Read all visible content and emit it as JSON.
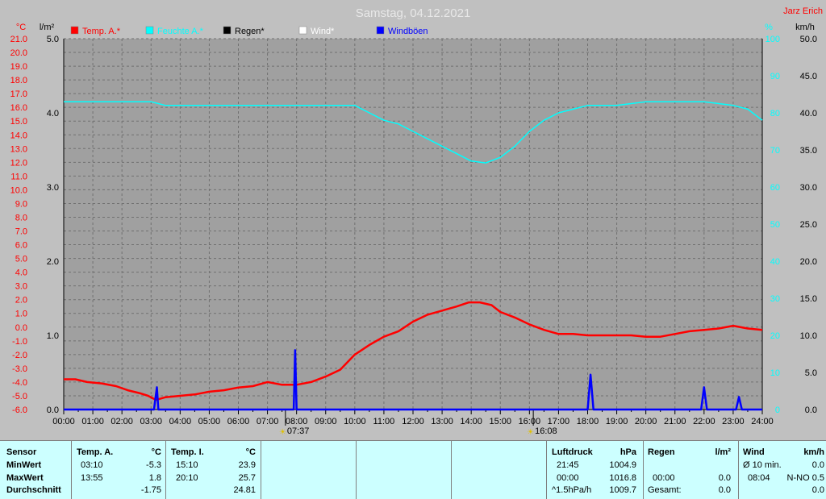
{
  "chart_data": {
    "type": "line",
    "title": "Samstag, 04.12.2021",
    "author": "Jarz Erich",
    "legend": [
      {
        "label": "Temp. A.*",
        "color": "#ff0000"
      },
      {
        "label": "Feuchte A.*",
        "color": "#00ffff"
      },
      {
        "label": "Regen*",
        "color": "#000000"
      },
      {
        "label": "Wind*",
        "color": "#ffffff"
      },
      {
        "label": "Windböen",
        "color": "#0000ff"
      }
    ],
    "axes": {
      "temp_unit": "°C",
      "temp_ticks": [
        "21.0",
        "20.0",
        "19.0",
        "18.0",
        "17.0",
        "16.0",
        "15.0",
        "14.0",
        "13.0",
        "12.0",
        "11.0",
        "10.0",
        "9.0",
        "8.0",
        "7.0",
        "6.0",
        "5.0",
        "4.0",
        "3.0",
        "2.0",
        "1.0",
        "0.0",
        "-1.0",
        "-2.0",
        "-3.0",
        "-4.0",
        "-5.0",
        "-6.0"
      ],
      "temp_range": [
        -6,
        21
      ],
      "rain_unit": "l/m²",
      "rain_ticks": [
        "5.0",
        "4.0",
        "3.0",
        "2.0",
        "1.0",
        "0.0"
      ],
      "rain_range": [
        0,
        5
      ],
      "hum_unit": "%",
      "hum_ticks": [
        "100",
        "90",
        "80",
        "70",
        "60",
        "50",
        "40",
        "30",
        "20",
        "10",
        "0"
      ],
      "hum_range": [
        0,
        100
      ],
      "wind_unit": "km/h",
      "wind_ticks": [
        "50.0",
        "45.0",
        "40.0",
        "35.0",
        "30.0",
        "25.0",
        "20.0",
        "15.0",
        "10.0",
        "5.0",
        "0.0"
      ],
      "wind_range": [
        0,
        50
      ],
      "x_ticks": [
        "00:00",
        "01:00",
        "02:00",
        "03:00",
        "04:00",
        "05:00",
        "06:00",
        "07:00",
        "08:00",
        "09:00",
        "10:00",
        "11:00",
        "12:00",
        "13:00",
        "14:00",
        "15:00",
        "16:00",
        "17:00",
        "18:00",
        "19:00",
        "20:00",
        "21:00",
        "22:00",
        "23:00",
        "24:00"
      ],
      "x_range_hours": [
        0,
        24
      ],
      "grid": true
    },
    "sun_markers": [
      {
        "label": "07:37",
        "hour": 7.617
      },
      {
        "label": "16:08",
        "hour": 16.133
      }
    ],
    "series": [
      {
        "name": "Temp. A.*",
        "color": "#ff0000",
        "axis": "temp",
        "points": [
          [
            0,
            -3.8
          ],
          [
            0.4,
            -3.8
          ],
          [
            0.8,
            -4.0
          ],
          [
            1.3,
            -4.1
          ],
          [
            1.8,
            -4.3
          ],
          [
            2.2,
            -4.6
          ],
          [
            2.6,
            -4.8
          ],
          [
            2.9,
            -5.0
          ],
          [
            3.17,
            -5.3
          ],
          [
            3.5,
            -5.1
          ],
          [
            4.0,
            -5.0
          ],
          [
            4.5,
            -4.9
          ],
          [
            5.0,
            -4.7
          ],
          [
            5.5,
            -4.6
          ],
          [
            6.0,
            -4.4
          ],
          [
            6.5,
            -4.3
          ],
          [
            7.0,
            -4.0
          ],
          [
            7.5,
            -4.2
          ],
          [
            8.0,
            -4.2
          ],
          [
            8.5,
            -4.0
          ],
          [
            9.0,
            -3.6
          ],
          [
            9.5,
            -3.1
          ],
          [
            10.0,
            -2.0
          ],
          [
            10.5,
            -1.3
          ],
          [
            11.0,
            -0.7
          ],
          [
            11.5,
            -0.3
          ],
          [
            12.0,
            0.4
          ],
          [
            12.5,
            0.9
          ],
          [
            13.0,
            1.2
          ],
          [
            13.5,
            1.5
          ],
          [
            13.92,
            1.8
          ],
          [
            14.3,
            1.8
          ],
          [
            14.7,
            1.6
          ],
          [
            15.0,
            1.1
          ],
          [
            15.5,
            0.7
          ],
          [
            16.0,
            0.2
          ],
          [
            16.5,
            -0.2
          ],
          [
            17.0,
            -0.5
          ],
          [
            17.5,
            -0.5
          ],
          [
            18.0,
            -0.6
          ],
          [
            18.5,
            -0.6
          ],
          [
            19.0,
            -0.6
          ],
          [
            19.5,
            -0.6
          ],
          [
            20.0,
            -0.7
          ],
          [
            20.5,
            -0.7
          ],
          [
            21.0,
            -0.5
          ],
          [
            21.5,
            -0.3
          ],
          [
            22.0,
            -0.2
          ],
          [
            22.5,
            -0.1
          ],
          [
            23.0,
            0.1
          ],
          [
            23.5,
            -0.1
          ],
          [
            24.0,
            -0.2
          ]
        ]
      },
      {
        "name": "Feuchte A.*",
        "color": "#00ffff",
        "axis": "hum",
        "points": [
          [
            0,
            83
          ],
          [
            1,
            83
          ],
          [
            2,
            83
          ],
          [
            3,
            83
          ],
          [
            3.5,
            82
          ],
          [
            4,
            82
          ],
          [
            5,
            82
          ],
          [
            6,
            82
          ],
          [
            7,
            82
          ],
          [
            8,
            82
          ],
          [
            9,
            82
          ],
          [
            10,
            82
          ],
          [
            10.5,
            80
          ],
          [
            11,
            78
          ],
          [
            11.5,
            77
          ],
          [
            12,
            75
          ],
          [
            12.5,
            73
          ],
          [
            13,
            71
          ],
          [
            13.5,
            69
          ],
          [
            14,
            67
          ],
          [
            14.5,
            66.5
          ],
          [
            15,
            68
          ],
          [
            15.5,
            71
          ],
          [
            16,
            75
          ],
          [
            16.5,
            78
          ],
          [
            17,
            80
          ],
          [
            17.5,
            81
          ],
          [
            18,
            82
          ],
          [
            19,
            82
          ],
          [
            20,
            83
          ],
          [
            21,
            83
          ],
          [
            22,
            83
          ],
          [
            23,
            82
          ],
          [
            23.5,
            81
          ],
          [
            24,
            78
          ]
        ]
      },
      {
        "name": "Windböen",
        "color": "#0000ff",
        "axis": "wind",
        "points": [
          [
            0,
            0
          ],
          [
            3.1,
            0
          ],
          [
            3.2,
            3.0
          ],
          [
            3.25,
            0
          ],
          [
            7.9,
            0
          ],
          [
            7.95,
            8.0
          ],
          [
            8.0,
            0
          ],
          [
            18.0,
            0
          ],
          [
            18.1,
            4.7
          ],
          [
            18.2,
            0
          ],
          [
            21.9,
            0
          ],
          [
            22.0,
            3.0
          ],
          [
            22.1,
            0
          ],
          [
            23.1,
            0
          ],
          [
            23.2,
            1.7
          ],
          [
            23.3,
            0
          ],
          [
            24,
            0
          ]
        ]
      }
    ]
  },
  "stats": {
    "sensor": {
      "header": "Sensor",
      "rows": [
        "MinWert",
        "MaxWert",
        "Durchschnitt"
      ]
    },
    "temp_a": {
      "header": "Temp. A.",
      "unit": "°C",
      "times": [
        "03:10",
        "13:55",
        ""
      ],
      "values": [
        "-5.3",
        "1.8",
        "-1.75"
      ]
    },
    "temp_i": {
      "header": "Temp. I.",
      "unit": "°C",
      "times": [
        "15:10",
        "20:10",
        ""
      ],
      "values": [
        "23.9",
        "25.7",
        "24.81"
      ]
    },
    "pressure": {
      "header": "Luftdruck",
      "unit": "hPa",
      "times": [
        "21:45",
        "00:00",
        "^1.5hPa/h"
      ],
      "values": [
        "1004.9",
        "1016.8",
        "1009.7"
      ]
    },
    "rain": {
      "header": "Regen",
      "unit": "l/m²",
      "times": [
        "",
        "00:00",
        "Gesamt:"
      ],
      "values": [
        "",
        "0.0",
        "0.0"
      ]
    },
    "wind": {
      "header": "Wind",
      "unit": "km/h",
      "times": [
        "Ø 10 min.",
        "08:04",
        ""
      ],
      "values": [
        "0.0",
        "N-NO 0.5",
        "0.0"
      ]
    }
  }
}
